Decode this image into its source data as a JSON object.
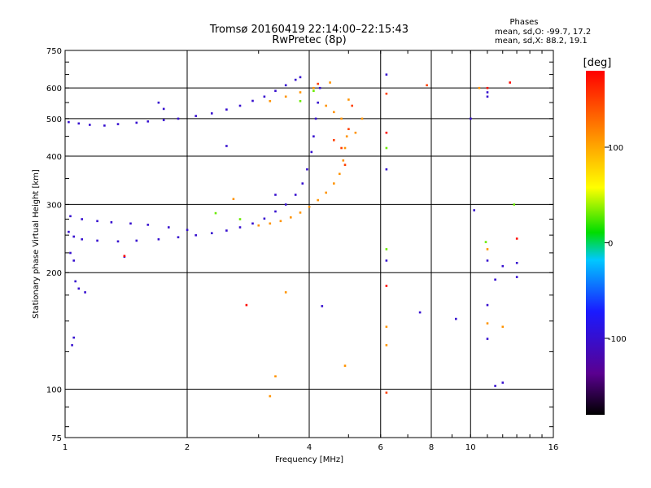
{
  "chart_data": {
    "type": "scatter",
    "title": "Tromsø 20160419 22:14:00–22:15:43",
    "subtitle": "RwPretec (8p)",
    "xlabel": "Frequency [MHz]",
    "ylabel": "Stationary phase Virtual Height [km]",
    "x_scale": "log",
    "y_scale": "log",
    "xlim": [
      1,
      16
    ],
    "ylim": [
      75,
      750
    ],
    "x_ticks": [
      1,
      2,
      4,
      6,
      8,
      10,
      16
    ],
    "y_ticks": [
      75,
      100,
      200,
      300,
      400,
      500,
      600,
      750
    ],
    "x_grid": [
      2,
      4,
      6,
      8,
      10
    ],
    "y_grid": [
      100,
      200,
      300,
      400,
      500,
      600
    ],
    "info": {
      "heading": "Phases",
      "line_o": "mean, sd,O: -99.7, 17.2",
      "line_x": "mean, sd,X: 88.2, 19.1"
    },
    "colorbar": {
      "label": "[deg]",
      "range": [
        -180,
        180
      ],
      "ticks": [
        100,
        0,
        -100
      ],
      "colormap": "rainbow",
      "stops": [
        "#000000",
        "#5a0090",
        "#1a1aff",
        "#00c8ff",
        "#00dd00",
        "#ffff00",
        "#ff8800",
        "#ff0000"
      ]
    },
    "series": [
      {
        "phase_deg": -100,
        "points": [
          [
            1.02,
            490
          ],
          [
            1.08,
            486
          ],
          [
            1.15,
            482
          ],
          [
            1.25,
            480
          ],
          [
            1.35,
            484
          ],
          [
            1.5,
            488
          ],
          [
            1.6,
            492
          ],
          [
            1.75,
            496
          ],
          [
            1.9,
            500
          ],
          [
            2.1,
            508
          ],
          [
            2.3,
            516
          ],
          [
            2.5,
            528
          ],
          [
            2.7,
            540
          ],
          [
            2.9,
            556
          ],
          [
            3.1,
            570
          ],
          [
            3.3,
            590
          ],
          [
            3.5,
            610
          ],
          [
            3.7,
            630
          ],
          [
            3.8,
            640
          ],
          [
            1.02,
            255
          ],
          [
            1.05,
            248
          ],
          [
            1.1,
            244
          ],
          [
            1.2,
            242
          ],
          [
            1.35,
            241
          ],
          [
            1.5,
            242
          ],
          [
            1.7,
            244
          ],
          [
            1.9,
            247
          ],
          [
            2.1,
            250
          ],
          [
            2.3,
            253
          ],
          [
            2.5,
            257
          ],
          [
            2.7,
            262
          ],
          [
            2.9,
            268
          ],
          [
            3.1,
            276
          ],
          [
            3.3,
            288
          ],
          [
            3.5,
            300
          ],
          [
            3.7,
            318
          ],
          [
            3.85,
            340
          ],
          [
            3.95,
            370
          ],
          [
            4.05,
            410
          ],
          [
            4.1,
            450
          ],
          [
            4.15,
            500
          ],
          [
            4.2,
            550
          ],
          [
            4.25,
            600
          ],
          [
            1.03,
            280
          ],
          [
            1.1,
            275
          ],
          [
            1.2,
            272
          ],
          [
            1.3,
            270
          ],
          [
            1.45,
            268
          ],
          [
            1.6,
            266
          ],
          [
            1.8,
            262
          ],
          [
            2.0,
            258
          ],
          [
            1.08,
            182
          ],
          [
            1.12,
            178
          ],
          [
            1.06,
            190
          ],
          [
            1.03,
            225
          ],
          [
            1.05,
            215
          ],
          [
            1.04,
            130
          ],
          [
            1.05,
            136
          ],
          [
            1.4,
            220
          ],
          [
            1.7,
            550
          ],
          [
            1.75,
            530
          ],
          [
            2.5,
            425
          ],
          [
            3.3,
            318
          ],
          [
            6.2,
            650
          ],
          [
            11.0,
            585
          ],
          [
            11.0,
            570
          ],
          [
            11.0,
            215
          ],
          [
            12.0,
            208
          ],
          [
            11.5,
            192
          ],
          [
            11.0,
            165
          ],
          [
            11.0,
            135
          ],
          [
            11.5,
            102
          ],
          [
            12.0,
            104
          ],
          [
            13.0,
            212
          ],
          [
            13.0,
            195
          ],
          [
            4.3,
            164
          ],
          [
            7.5,
            158
          ],
          [
            9.2,
            152
          ],
          [
            6.2,
            215
          ],
          [
            6.2,
            370
          ],
          [
            10.0,
            500
          ],
          [
            10.2,
            290
          ]
        ]
      },
      {
        "phase_deg": 30,
        "points": [
          [
            2.35,
            285
          ],
          [
            2.7,
            275
          ],
          [
            3.8,
            555
          ],
          [
            4.1,
            590
          ],
          [
            6.2,
            230
          ],
          [
            6.2,
            420
          ],
          [
            12.8,
            300
          ],
          [
            10.9,
            240
          ]
        ]
      },
      {
        "phase_deg": 110,
        "points": [
          [
            3.0,
            265
          ],
          [
            3.2,
            268
          ],
          [
            3.4,
            272
          ],
          [
            3.6,
            278
          ],
          [
            3.8,
            286
          ],
          [
            4.0,
            296
          ],
          [
            4.2,
            308
          ],
          [
            4.4,
            322
          ],
          [
            4.6,
            340
          ],
          [
            4.75,
            360
          ],
          [
            4.85,
            390
          ],
          [
            4.9,
            420
          ],
          [
            4.95,
            450
          ],
          [
            3.2,
            555
          ],
          [
            3.5,
            570
          ],
          [
            3.8,
            585
          ],
          [
            4.1,
            600
          ],
          [
            4.5,
            620
          ],
          [
            4.4,
            540
          ],
          [
            4.6,
            520
          ],
          [
            4.8,
            500
          ],
          [
            5.0,
            560
          ],
          [
            5.2,
            460
          ],
          [
            4.9,
            115
          ],
          [
            5.4,
            500
          ],
          [
            6.2,
            145
          ],
          [
            6.2,
            130
          ],
          [
            3.3,
            108
          ],
          [
            3.2,
            96
          ],
          [
            3.5,
            178
          ],
          [
            11.0,
            148
          ],
          [
            12.0,
            145
          ],
          [
            11.0,
            230
          ],
          [
            2.6,
            310
          ],
          [
            10.5,
            600
          ]
        ]
      },
      {
        "phase_deg": 150,
        "points": [
          [
            4.6,
            440
          ],
          [
            4.8,
            420
          ],
          [
            4.9,
            380
          ],
          [
            5.0,
            470
          ],
          [
            5.1,
            540
          ],
          [
            4.2,
            615
          ],
          [
            6.2,
            98
          ],
          [
            6.2,
            580
          ],
          [
            7.8,
            610
          ]
        ]
      },
      {
        "phase_deg": 175,
        "points": [
          [
            2.8,
            165
          ],
          [
            6.2,
            185
          ],
          [
            6.2,
            460
          ],
          [
            12.5,
            620
          ],
          [
            11.0,
            600
          ],
          [
            1.4,
            221
          ],
          [
            13.0,
            245
          ]
        ]
      }
    ]
  }
}
